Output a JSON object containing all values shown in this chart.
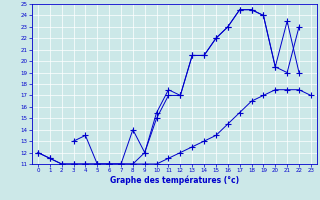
{
  "xlabel": "Graphe des températures (°c)",
  "bg_color": "#cce8e8",
  "line_color": "#0000cc",
  "grid_color": "#aacccc",
  "xlim": [
    -0.5,
    23.5
  ],
  "ylim": [
    11,
    25
  ],
  "xticks": [
    0,
    1,
    2,
    3,
    4,
    5,
    6,
    7,
    8,
    9,
    10,
    11,
    12,
    13,
    14,
    15,
    16,
    17,
    18,
    19,
    20,
    21,
    22,
    23
  ],
  "yticks": [
    11,
    12,
    13,
    14,
    15,
    16,
    17,
    18,
    19,
    20,
    21,
    22,
    23,
    24,
    25
  ],
  "line1_x": [
    0,
    1,
    2,
    3,
    4,
    5,
    6,
    7,
    8,
    9,
    10,
    11,
    12,
    13,
    14,
    15,
    16,
    17,
    18,
    19,
    20,
    21,
    22,
    23
  ],
  "line1_y": [
    12,
    11.5,
    11,
    11,
    11,
    11,
    11,
    11,
    11,
    11,
    11,
    11.5,
    12,
    12.5,
    13,
    13.5,
    14.5,
    15.5,
    16.5,
    17,
    17.5,
    17.5,
    17.5,
    17
  ],
  "line2_x": [
    0,
    1,
    2,
    3,
    4,
    5,
    6,
    7,
    8,
    9,
    10,
    11,
    12,
    13,
    14,
    15,
    16,
    17,
    18,
    19,
    20,
    21,
    22
  ],
  "line2_y": [
    12,
    11.5,
    11,
    11,
    11,
    11,
    11,
    11,
    14,
    12,
    15.5,
    17.5,
    17,
    20.5,
    20.5,
    22,
    23,
    24.5,
    24.5,
    24,
    19.5,
    19,
    23
  ],
  "line3_x": [
    3,
    4,
    5,
    6,
    7,
    8,
    9,
    10,
    11,
    12,
    13,
    14,
    15,
    16,
    17,
    18,
    19,
    20,
    21,
    22
  ],
  "line3_y": [
    13,
    13.5,
    11,
    11,
    11,
    11,
    12,
    15,
    17,
    17,
    20.5,
    20.5,
    22,
    23,
    24.5,
    24.5,
    24,
    19.5,
    23.5,
    19
  ]
}
